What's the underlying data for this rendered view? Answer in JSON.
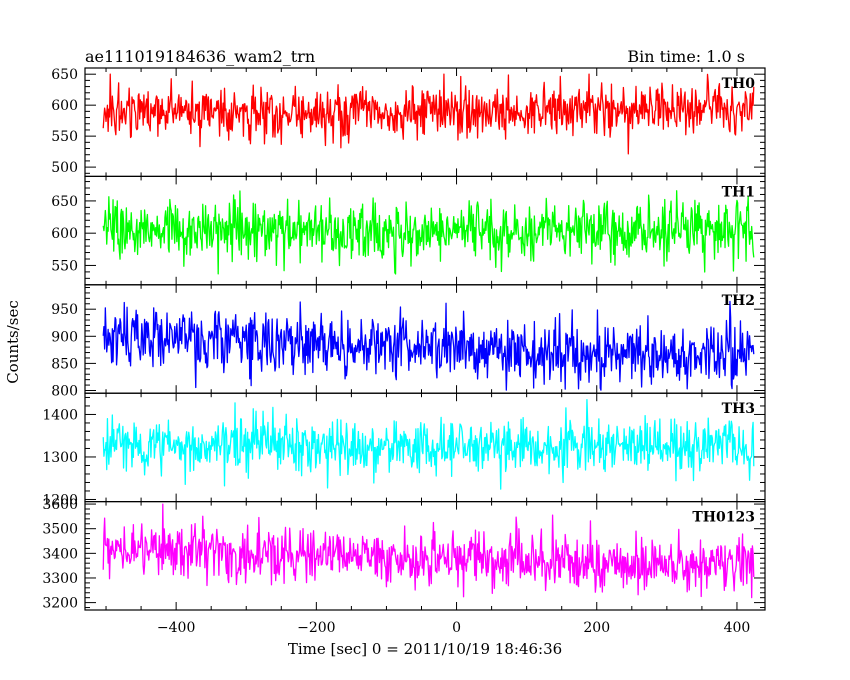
{
  "chart_data": {
    "type": "line",
    "title": "ae111019184636_wam2_trn",
    "subtitle": "Bin time: 1.0 s",
    "xlabel": "Time [sec] 0 = 2011/10/19 18:46:36",
    "ylabel": "Counts/sec",
    "grid": false,
    "xlim": [
      -530,
      440
    ],
    "xticks": [
      -400,
      -200,
      0,
      200,
      400
    ],
    "x_range": [
      -504,
      424
    ],
    "bin_time": 1.0,
    "panels": [
      {
        "name": "TH0",
        "color": "#ff0000",
        "ylim": [
          485,
          660
        ],
        "yticks": [
          500,
          550,
          600,
          650
        ],
        "mean": 590,
        "noise": 20,
        "clip": [
          500,
          655
        ],
        "drift": [
          [
            -504,
            590
          ],
          [
            0,
            588
          ],
          [
            424,
            595
          ]
        ]
      },
      {
        "name": "TH1",
        "color": "#00ff00",
        "ylim": [
          520,
          688
        ],
        "yticks": [
          550,
          600,
          650
        ],
        "mean": 603,
        "noise": 22,
        "clip": [
          535,
          690
        ],
        "drift": [
          [
            -504,
            605
          ],
          [
            0,
            601
          ],
          [
            424,
            603
          ]
        ]
      },
      {
        "name": "TH2",
        "color": "#0000ff",
        "ylim": [
          795,
          995
        ],
        "yticks": [
          800,
          850,
          900,
          950
        ],
        "mean": 880,
        "noise": 28,
        "clip": [
          800,
          995
        ],
        "drift": [
          [
            -504,
            905
          ],
          [
            -250,
            890
          ],
          [
            0,
            875
          ],
          [
            200,
            868
          ],
          [
            424,
            865
          ]
        ]
      },
      {
        "name": "TH3",
        "color": "#00ffff",
        "ylim": [
          1195,
          1450
        ],
        "yticks": [
          1200,
          1300,
          1400
        ],
        "mean": 1325,
        "noise": 32,
        "clip": [
          1210,
          1450
        ],
        "drift": [
          [
            -504,
            1328
          ],
          [
            0,
            1322
          ],
          [
            424,
            1326
          ]
        ]
      },
      {
        "name": "TH0123",
        "color": "#ff00ff",
        "ylim": [
          3170,
          3610
        ],
        "yticks": [
          3200,
          3300,
          3400,
          3500,
          3600
        ],
        "mean": 3390,
        "noise": 55,
        "clip": [
          3195,
          3610
        ],
        "drift": [
          [
            -504,
            3425
          ],
          [
            -300,
            3405
          ],
          [
            0,
            3380
          ],
          [
            200,
            3365
          ],
          [
            424,
            3360
          ]
        ]
      }
    ]
  }
}
